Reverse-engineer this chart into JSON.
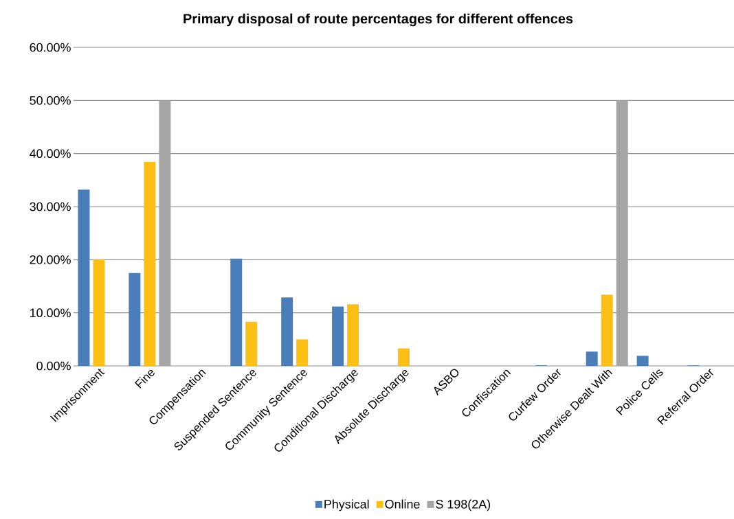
{
  "chart_data": {
    "type": "bar",
    "title": "Primary disposal of route percentages for different offences",
    "categories": [
      "Imprisonment",
      "Fine",
      "Compensation",
      "Suspended Sentence",
      "Community Sentence",
      "Conditional Discharge",
      "Absolute Discharge",
      "ASBO",
      "Confiscation",
      "Curfew Order",
      "Otherwise Dealt With",
      "Police Cells",
      "Referral Order"
    ],
    "series": [
      {
        "name": "Physical",
        "color": "#4a7ebb",
        "values": [
          33.2,
          17.5,
          null,
          20.2,
          12.9,
          11.2,
          null,
          null,
          null,
          0.1,
          2.7,
          1.9,
          0.1
        ]
      },
      {
        "name": "Online",
        "color": "#fbc013",
        "values": [
          20.0,
          38.4,
          null,
          8.3,
          5.0,
          11.6,
          3.3,
          null,
          null,
          null,
          13.4,
          null,
          null
        ]
      },
      {
        "name": "S 198(2A)",
        "color": "#a5a5a5",
        "values": [
          null,
          50.0,
          null,
          null,
          null,
          null,
          null,
          null,
          null,
          null,
          50.0,
          null,
          null
        ]
      }
    ],
    "ylim": [
      0,
      60
    ],
    "yticks": [
      {
        "value": 0,
        "label": "0.00%"
      },
      {
        "value": 10,
        "label": "10.00%"
      },
      {
        "value": 20,
        "label": "20.00%"
      },
      {
        "value": 30,
        "label": "30.00%"
      },
      {
        "value": 40,
        "label": "40.00%"
      },
      {
        "value": 50,
        "label": "50.00%"
      },
      {
        "value": 60,
        "label": "60.00%"
      }
    ],
    "grid": "y",
    "legend": "bottom"
  }
}
